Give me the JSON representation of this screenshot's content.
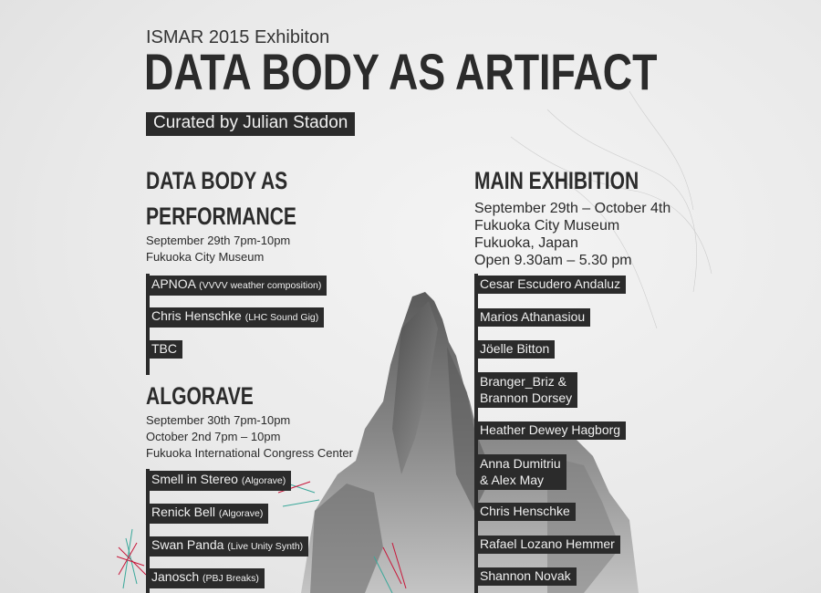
{
  "header": {
    "subtitle": "ISMAR 2015 Exhibiton",
    "title": "DATA BODY AS ARTIFACT",
    "curator": "Curated by Julian Stadon"
  },
  "performance": {
    "heading_line1": "DATA BODY AS",
    "heading_line2": "PERFORMANCE",
    "date": "September 29th 7pm-10pm",
    "venue": "Fukuoka City Museum",
    "acts": [
      {
        "name": "APNOA",
        "note": "(VVVV weather composition)"
      },
      {
        "name": "Chris Henschke",
        "note": "(LHC Sound Gig)"
      },
      {
        "name": "TBC",
        "note": ""
      }
    ]
  },
  "algorave": {
    "heading": "ALGORAVE",
    "date1": "September 30th 7pm-10pm",
    "date2": "October 2nd 7pm – 10pm",
    "venue": "Fukuoka International Congress Center",
    "acts": [
      {
        "name": "Smell in Stereo",
        "note": "(Algorave)"
      },
      {
        "name": "Renick Bell",
        "note": "(Algorave)"
      },
      {
        "name": "Swan Panda",
        "note": "(Live Unity Synth)"
      },
      {
        "name": "Janosch",
        "note": "(PBJ Breaks)"
      }
    ]
  },
  "main": {
    "heading": "MAIN EXHIBITION",
    "dates": "September 29th – October 4th",
    "venue": "Fukuoka City Museum",
    "city": "Fukuoka, Japan",
    "hours": "Open 9.30am – 5.30 pm",
    "artists": [
      {
        "line1": "Cesar Escudero Andaluz",
        "line2": ""
      },
      {
        "line1": "Marios Athanasiou",
        "line2": ""
      },
      {
        "line1": "Jöelle Bitton",
        "line2": ""
      },
      {
        "line1": "Branger_Briz &",
        "line2": "Brannon Dorsey"
      },
      {
        "line1": "Heather Dewey Hagborg",
        "line2": ""
      },
      {
        "line1": "Anna Dumitriu",
        "line2": "& Alex May"
      },
      {
        "line1": "Chris Henschke",
        "line2": ""
      },
      {
        "line1": "Rafael Lozano Hemmer",
        "line2": ""
      },
      {
        "line1": "Shannon Novak",
        "line2": ""
      }
    ]
  },
  "colors": {
    "ink": "#2b2b2b",
    "background": "#ececec",
    "accent_red": "#c8163a",
    "accent_teal": "#3aa89a"
  }
}
